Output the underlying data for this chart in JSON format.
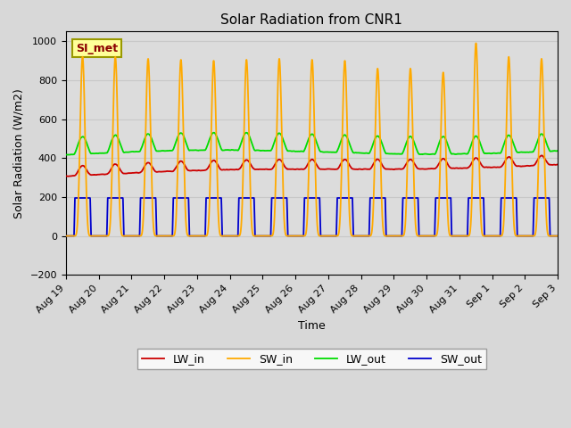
{
  "title": "Solar Radiation from CNR1",
  "xlabel": "Time",
  "ylabel": "Solar Radiation (W/m2)",
  "ylim": [
    -200,
    1050
  ],
  "yticks": [
    -200,
    0,
    200,
    400,
    600,
    800,
    1000
  ],
  "fig_bg_color": "#d8d8d8",
  "plot_bg_color": "#dcdcdc",
  "series": {
    "LW_in": {
      "color": "#cc0000",
      "lw": 1.3
    },
    "SW_in": {
      "color": "#ffaa00",
      "lw": 1.3
    },
    "LW_out": {
      "color": "#00dd00",
      "lw": 1.3
    },
    "SW_out": {
      "color": "#0000cc",
      "lw": 1.3
    }
  },
  "annotation_text": "SI_met",
  "annotation_color": "#8b0000",
  "annotation_bg": "#ffff99",
  "annotation_border": "#999900",
  "x_tick_labels": [
    "Aug 19",
    "Aug 20",
    "Aug 21",
    "Aug 22",
    "Aug 23",
    "Aug 24",
    "Aug 25",
    "Aug 26",
    "Aug 27",
    "Aug 28",
    "Aug 29",
    "Aug 30",
    "Aug 31",
    "Sep 1",
    "Sep 2",
    "Sep 3"
  ],
  "n_days": 15,
  "pts_per_day": 288,
  "SW_peaks": [
    920,
    920,
    910,
    905,
    900,
    905,
    910,
    905,
    900,
    860,
    860,
    840,
    990,
    920,
    910
  ],
  "SW_out_peak": 195,
  "LW_in_base": 310,
  "LW_out_base": 420,
  "grid_color": "#c8c8c8",
  "grid_lw": 0.8
}
